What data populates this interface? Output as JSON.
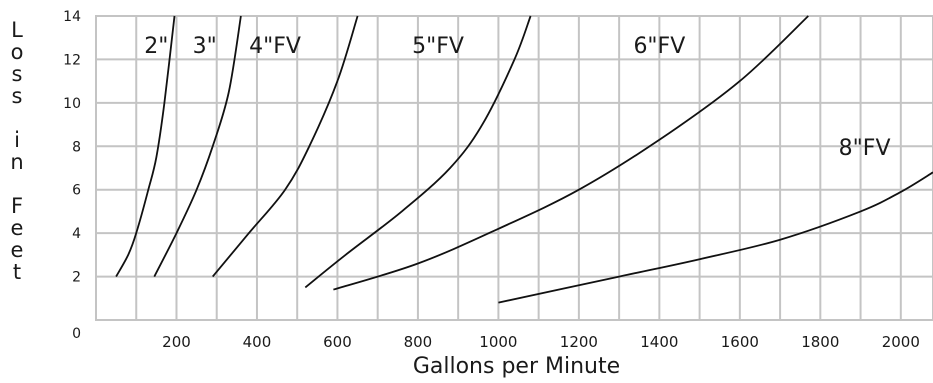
{
  "chart_data": {
    "type": "line",
    "xlabel": "Gallons per Minute",
    "ylabel": "Loss in Feet",
    "xlim": [
      0,
      2080
    ],
    "ylim": [
      0,
      14
    ],
    "x_ticks": [
      "200",
      "400",
      "600",
      "800",
      "1000",
      "1200",
      "1400",
      "1600",
      "1800",
      "2000"
    ],
    "y_ticks": [
      "0",
      "2",
      "4",
      "6",
      "8",
      "10",
      "12",
      "14"
    ],
    "grid": "on",
    "series": [
      {
        "name": "2\"",
        "label_at": [
          150,
          12.3
        ],
        "points": [
          [
            50,
            2.0
          ],
          [
            80,
            3.0
          ],
          [
            100,
            4.0
          ],
          [
            130,
            6.0
          ],
          [
            150,
            7.5
          ],
          [
            170,
            10.0
          ],
          [
            195,
            14.0
          ]
        ]
      },
      {
        "name": "3\"",
        "label_at": [
          270,
          12.3
        ],
        "points": [
          [
            145,
            2.0
          ],
          [
            200,
            4.0
          ],
          [
            250,
            6.0
          ],
          [
            290,
            8.0
          ],
          [
            330,
            10.5
          ],
          [
            360,
            14.0
          ]
        ]
      },
      {
        "name": "4\"FV",
        "label_at": [
          445,
          12.3
        ],
        "points": [
          [
            290,
            2.0
          ],
          [
            380,
            4.0
          ],
          [
            470,
            6.0
          ],
          [
            530,
            8.0
          ],
          [
            600,
            11.0
          ],
          [
            650,
            14.0
          ]
        ]
      },
      {
        "name": "5\"FV",
        "label_at": [
          850,
          12.3
        ],
        "points": [
          [
            520,
            1.5
          ],
          [
            620,
            3.0
          ],
          [
            760,
            5.0
          ],
          [
            880,
            7.0
          ],
          [
            960,
            9.0
          ],
          [
            1040,
            12.0
          ],
          [
            1080,
            14.0
          ]
        ]
      },
      {
        "name": "6\"FV",
        "label_at": [
          1400,
          12.3
        ],
        "points": [
          [
            590,
            1.4
          ],
          [
            800,
            2.6
          ],
          [
            1000,
            4.2
          ],
          [
            1200,
            6.0
          ],
          [
            1400,
            8.3
          ],
          [
            1600,
            11.0
          ],
          [
            1770,
            14.0
          ]
        ]
      },
      {
        "name": "8\"FV",
        "label_at": [
          1910,
          7.6
        ],
        "points": [
          [
            1000,
            0.8
          ],
          [
            1300,
            2.0
          ],
          [
            1500,
            2.8
          ],
          [
            1700,
            3.7
          ],
          [
            1900,
            5.0
          ],
          [
            2000,
            5.9
          ],
          [
            2080,
            6.8
          ]
        ]
      }
    ]
  },
  "colors": {
    "grid": "#c4c4c4",
    "line": "#111111",
    "text": "#1a1a1a"
  }
}
